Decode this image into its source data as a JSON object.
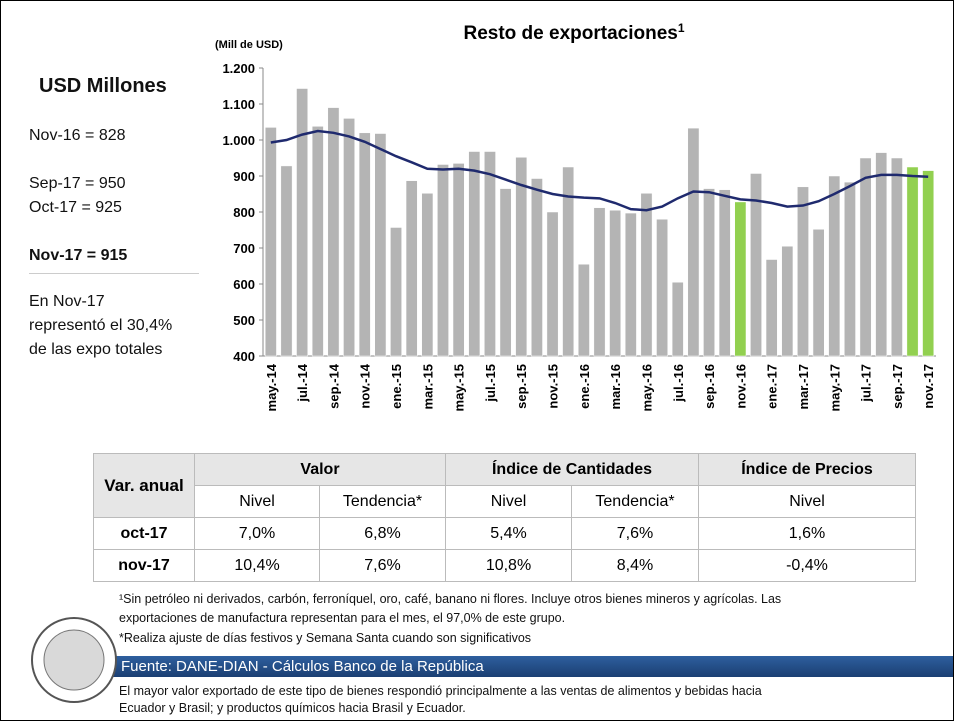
{
  "chart_data": {
    "type": "bar",
    "title": "Resto de exportaciones",
    "title_note": "1",
    "y_label": "(Mill de USD)",
    "categories": [
      "may.-14",
      null,
      "jul.-14",
      null,
      "sep.-14",
      null,
      "nov.-14",
      null,
      "ene.-15",
      null,
      "mar.-15",
      null,
      "may.-15",
      null,
      "jul.-15",
      null,
      "sep.-15",
      null,
      "nov.-15",
      null,
      "ene.-16",
      null,
      "mar.-16",
      null,
      "may.-16",
      null,
      "jul.-16",
      null,
      "sep.-16",
      null,
      "nov.-16",
      null,
      "ene.-17",
      null,
      "mar.-17",
      null,
      "may.-17",
      null,
      "jul.-17",
      null,
      "sep.-17",
      null,
      "nov.-17"
    ],
    "series": [
      {
        "type": "bar",
        "color": "#b4b4b4",
        "colors": [
          "#b4b4b4",
          "#b4b4b4",
          "#b4b4b4",
          "#b4b4b4",
          "#b4b4b4",
          "#b4b4b4",
          "#b4b4b4",
          "#b4b4b4",
          "#b4b4b4",
          "#b4b4b4",
          "#b4b4b4",
          "#b4b4b4",
          "#b4b4b4",
          "#b4b4b4",
          "#b4b4b4",
          "#b4b4b4",
          "#b4b4b4",
          "#b4b4b4",
          "#b4b4b4",
          "#b4b4b4",
          "#b4b4b4",
          "#b4b4b4",
          "#b4b4b4",
          "#b4b4b4",
          "#b4b4b4",
          "#b4b4b4",
          "#b4b4b4",
          "#b4b4b4",
          "#b4b4b4",
          "#b4b4b4",
          "#92d050",
          "#b4b4b4",
          "#b4b4b4",
          "#b4b4b4",
          "#b4b4b4",
          "#b4b4b4",
          "#b4b4b4",
          "#b4b4b4",
          "#b4b4b4",
          "#b4b4b4",
          "#b4b4b4",
          "#92d050",
          "#92d050"
        ],
        "values": [
          1035,
          928,
          1143,
          1038,
          1090,
          1060,
          1020,
          1018,
          757,
          887,
          852,
          932,
          935,
          968,
          968,
          865,
          952,
          893,
          800,
          925,
          655,
          812,
          805,
          797,
          852,
          780,
          605,
          1033,
          865,
          862,
          828,
          907,
          668,
          705,
          870,
          752,
          900,
          883,
          950,
          965,
          950,
          925,
          915
        ]
      },
      {
        "type": "line",
        "color": "#1f2a6e",
        "values": [
          993,
          1000,
          1015,
          1025,
          1020,
          1010,
          995,
          975,
          955,
          938,
          920,
          918,
          920,
          915,
          905,
          890,
          875,
          862,
          850,
          843,
          840,
          838,
          825,
          808,
          805,
          815,
          838,
          857,
          855,
          845,
          835,
          832,
          825,
          815,
          818,
          830,
          850,
          872,
          895,
          903,
          903,
          900,
          898
        ]
      }
    ],
    "ylim": [
      400,
      1200
    ],
    "yticks": [
      400,
      500,
      600,
      700,
      800,
      900,
      {
        "value": 1000,
        "label": "1.000"
      },
      {
        "value": 1100,
        "label": "1.100"
      },
      {
        "value": 1200,
        "label": "1.200"
      }
    ]
  },
  "side": {
    "heading": "USD Millones",
    "nov16": "Nov-16 = 828",
    "sep17": "Sep-17 = 950",
    "oct17": "Oct-17 = 925",
    "nov17": "Nov-17 = 915",
    "note": [
      "En Nov-17",
      "representó el 30,4%",
      "de las expo totales"
    ]
  },
  "table": {
    "corner": "Var. anual",
    "groups": [
      "Valor",
      "Índice de Cantidades",
      "Índice de Precios"
    ],
    "sub": [
      "Nivel",
      "Tendencia*",
      "Nivel",
      "Tendencia*",
      "Nivel"
    ],
    "rows": [
      [
        "oct-17",
        "7,0%",
        "6,8%",
        "5,4%",
        "7,6%",
        "1,6%"
      ],
      [
        "nov-17",
        "10,4%",
        "7,6%",
        "10,8%",
        "8,4%",
        "-0,4%"
      ]
    ]
  },
  "footnotes": [
    "¹Sin petróleo ni derivados, carbón, ferroníquel, oro, café, banano ni flores. Incluye otros bienes mineros y agrícolas. Las",
    "exportaciones de manufactura representan para el mes, el 97,0% de este grupo.",
    "*Realiza ajuste de días festivos y Semana Santa cuando son significativos"
  ],
  "source": "Fuente: DANE-DIAN - Cálculos Banco de la República",
  "bottom": [
    "El mayor valor exportado de este tipo de bienes respondió principalmente a las ventas de alimentos y bebidas hacia",
    "Ecuador y Brasil; y productos químicos hacia Brasil y Ecuador."
  ]
}
